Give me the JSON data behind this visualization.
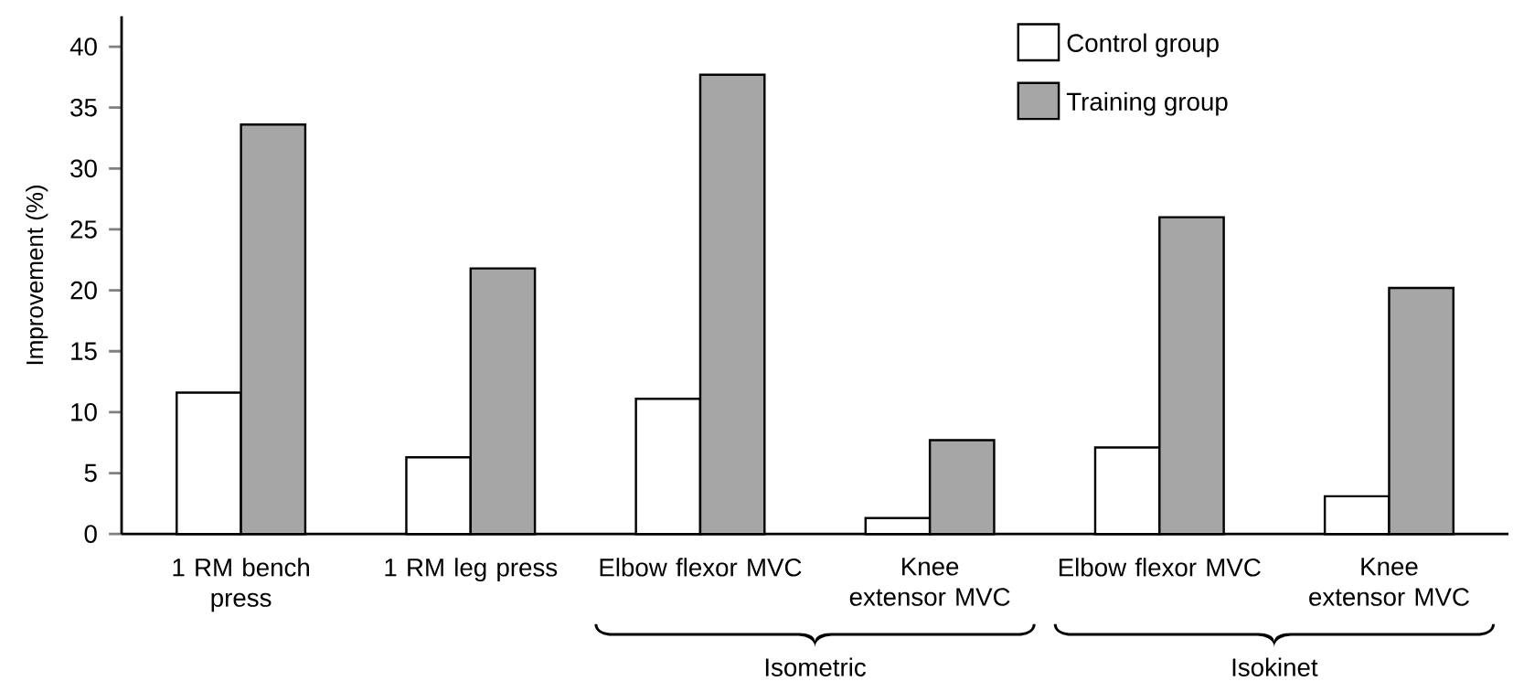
{
  "chart_data": {
    "type": "bar",
    "ylabel": "Improvement (%)",
    "categories": [
      "1 RM bench press",
      "1 RM leg press",
      "Elbow flexor MVC",
      "Knee extensor MVC",
      "Elbow flexor MVC",
      "Knee extensor MVC"
    ],
    "series": [
      {
        "name": "Control group",
        "color": "#ffffff",
        "values": [
          11.6,
          6.3,
          11.1,
          1.3,
          7.1,
          3.1
        ]
      },
      {
        "name": "Training group",
        "color": "#a6a6a6",
        "values": [
          33.6,
          21.8,
          37.7,
          7.7,
          26.0,
          20.2
        ]
      }
    ],
    "ylim": [
      0,
      42.5
    ],
    "yticks": [
      0,
      5,
      10,
      15,
      20,
      25,
      30,
      35,
      40
    ],
    "legend": "top right",
    "grid": false,
    "annotations": [
      "Isometric",
      "Isokinet"
    ]
  }
}
